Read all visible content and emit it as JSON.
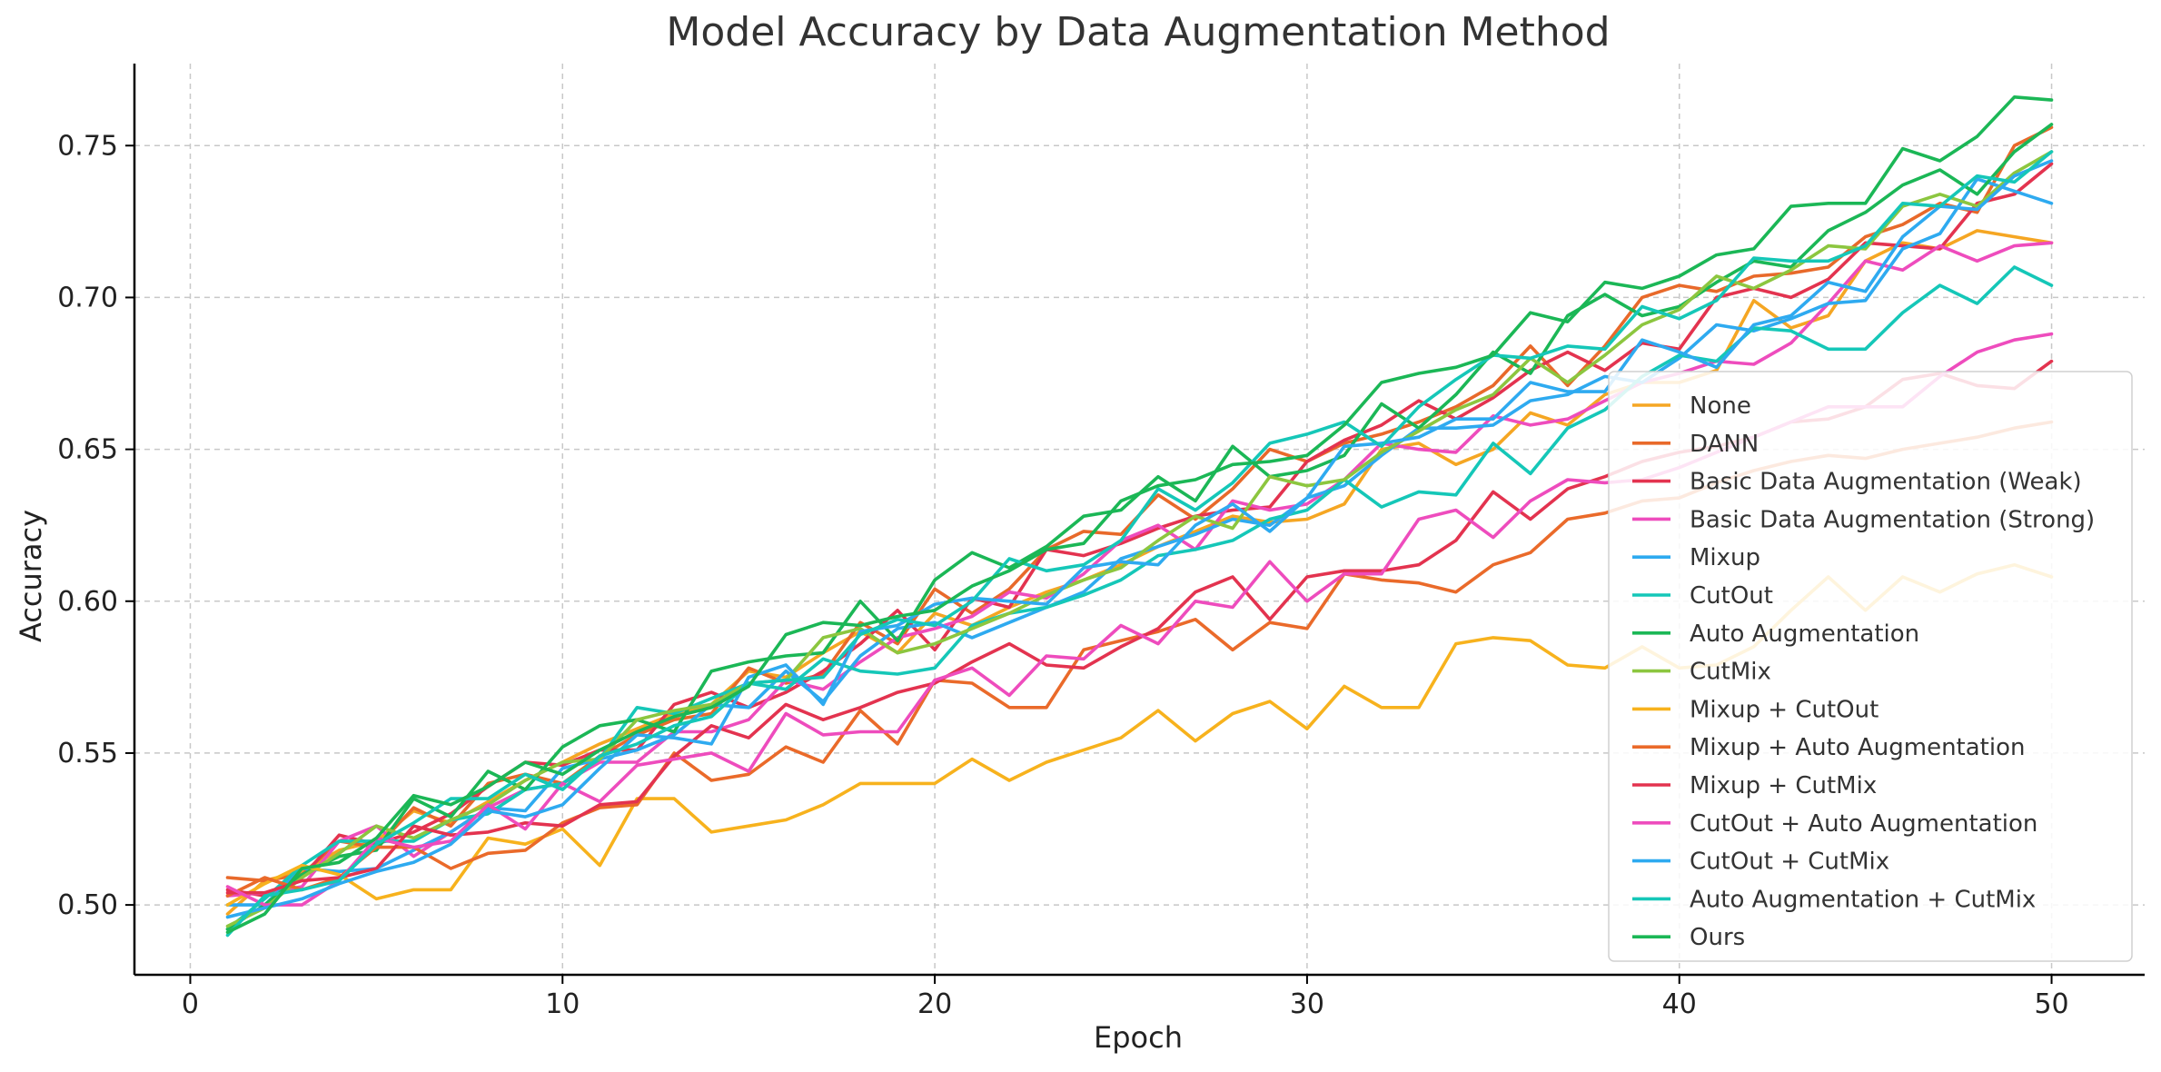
{
  "chart_data": {
    "type": "line",
    "title": "Model Accuracy by Data Augmentation Method",
    "xlabel": "Epoch",
    "ylabel": "Accuracy",
    "xlim": [
      -1.5,
      52.5
    ],
    "ylim": [
      0.477,
      0.777
    ],
    "xticks": [
      0,
      10,
      20,
      30,
      40,
      50
    ],
    "yticks": [
      0.5,
      0.55,
      0.6,
      0.65,
      0.7,
      0.75
    ],
    "xtick_labels": [
      "0",
      "10",
      "20",
      "30",
      "40",
      "50"
    ],
    "ytick_labels": [
      "0.50",
      "0.55",
      "0.60",
      "0.65",
      "0.70",
      "0.75"
    ],
    "grid": true,
    "legend_position": "lower-right",
    "x": [
      1,
      2,
      3,
      4,
      5,
      6,
      7,
      8,
      9,
      10,
      11,
      12,
      13,
      14,
      15,
      16,
      17,
      18,
      19,
      20,
      21,
      22,
      23,
      24,
      25,
      26,
      27,
      28,
      29,
      30,
      31,
      32,
      33,
      34,
      35,
      36,
      37,
      38,
      39,
      40,
      41,
      42,
      43,
      44,
      45,
      46,
      47,
      48,
      49,
      50
    ],
    "series": [
      {
        "name": "None",
        "color": "#f5a623",
        "values": [
          0.497,
          0.508,
          0.511,
          0.518,
          0.521,
          0.531,
          0.527,
          0.534,
          0.541,
          0.547,
          0.553,
          0.558,
          0.563,
          0.566,
          0.577,
          0.575,
          0.583,
          0.59,
          0.583,
          0.596,
          0.592,
          0.598,
          0.603,
          0.607,
          0.612,
          0.618,
          0.623,
          0.628,
          0.626,
          0.627,
          0.632,
          0.65,
          0.652,
          0.645,
          0.65,
          0.662,
          0.658,
          0.668,
          0.672,
          0.672,
          0.676,
          0.699,
          0.69,
          0.694,
          0.712,
          0.718,
          0.716,
          0.722,
          0.72,
          0.718
        ]
      },
      {
        "name": "DANN",
        "color": "#e8692a",
        "values": [
          0.509,
          0.508,
          0.51,
          0.521,
          0.519,
          0.532,
          0.526,
          0.54,
          0.543,
          0.54,
          0.549,
          0.556,
          0.561,
          0.563,
          0.578,
          0.573,
          0.576,
          0.593,
          0.586,
          0.604,
          0.596,
          0.604,
          0.617,
          0.623,
          0.622,
          0.635,
          0.627,
          0.637,
          0.65,
          0.646,
          0.652,
          0.655,
          0.659,
          0.664,
          0.671,
          0.684,
          0.671,
          0.684,
          0.7,
          0.704,
          0.702,
          0.707,
          0.708,
          0.71,
          0.72,
          0.724,
          0.731,
          0.728,
          0.75,
          0.756
        ]
      },
      {
        "name": "Basic Data Augmentation (Weak)",
        "color": "#e3334f",
        "values": [
          0.505,
          0.503,
          0.509,
          0.523,
          0.52,
          0.524,
          0.53,
          0.539,
          0.547,
          0.546,
          0.551,
          0.551,
          0.566,
          0.57,
          0.565,
          0.57,
          0.577,
          0.586,
          0.597,
          0.584,
          0.601,
          0.598,
          0.617,
          0.615,
          0.619,
          0.624,
          0.628,
          0.63,
          0.631,
          0.646,
          0.653,
          0.658,
          0.666,
          0.66,
          0.667,
          0.676,
          0.682,
          0.676,
          0.685,
          0.683,
          0.7,
          0.703,
          0.7,
          0.706,
          0.718,
          0.717,
          0.716,
          0.731,
          0.734,
          0.744
        ]
      },
      {
        "name": "Basic Data Augmentation (Strong)",
        "color": "#ee4cbd",
        "values": [
          0.503,
          0.504,
          0.506,
          0.521,
          0.526,
          0.516,
          0.524,
          0.532,
          0.538,
          0.54,
          0.547,
          0.547,
          0.557,
          0.557,
          0.561,
          0.574,
          0.571,
          0.58,
          0.588,
          0.591,
          0.595,
          0.603,
          0.601,
          0.609,
          0.62,
          0.625,
          0.617,
          0.633,
          0.63,
          0.632,
          0.64,
          0.652,
          0.65,
          0.649,
          0.661,
          0.658,
          0.66,
          0.666,
          0.672,
          0.675,
          0.679,
          0.678,
          0.685,
          0.698,
          0.712,
          0.709,
          0.717,
          0.712,
          0.717,
          0.718
        ]
      },
      {
        "name": "Mixup",
        "color": "#2eaaf0",
        "values": [
          0.5,
          0.5,
          0.512,
          0.511,
          0.512,
          0.518,
          0.524,
          0.532,
          0.531,
          0.545,
          0.548,
          0.551,
          0.556,
          0.566,
          0.565,
          0.577,
          0.567,
          0.582,
          0.591,
          0.593,
          0.588,
          0.593,
          0.598,
          0.603,
          0.614,
          0.618,
          0.622,
          0.627,
          0.625,
          0.634,
          0.638,
          0.648,
          0.657,
          0.657,
          0.658,
          0.666,
          0.668,
          0.674,
          0.672,
          0.68,
          0.691,
          0.689,
          0.693,
          0.698,
          0.699,
          0.716,
          0.721,
          0.739,
          0.735,
          0.731
        ]
      },
      {
        "name": "CutOut",
        "color": "#15c7b8",
        "values": [
          0.492,
          0.502,
          0.513,
          0.521,
          0.521,
          0.521,
          0.528,
          0.53,
          0.538,
          0.54,
          0.548,
          0.565,
          0.563,
          0.568,
          0.573,
          0.571,
          0.581,
          0.577,
          0.576,
          0.578,
          0.592,
          0.596,
          0.598,
          0.602,
          0.607,
          0.615,
          0.617,
          0.62,
          0.627,
          0.63,
          0.64,
          0.631,
          0.636,
          0.635,
          0.652,
          0.642,
          0.657,
          0.663,
          0.674,
          0.681,
          0.679,
          0.69,
          0.689,
          0.683,
          0.683,
          0.695,
          0.704,
          0.698,
          0.71,
          0.704
        ]
      },
      {
        "name": "Auto Augmentation",
        "color": "#1bb756",
        "values": [
          0.492,
          0.5,
          0.51,
          0.516,
          0.518,
          0.535,
          0.529,
          0.544,
          0.538,
          0.552,
          0.559,
          0.561,
          0.557,
          0.577,
          0.58,
          0.582,
          0.583,
          0.6,
          0.587,
          0.607,
          0.616,
          0.611,
          0.618,
          0.628,
          0.63,
          0.641,
          0.633,
          0.651,
          0.641,
          0.643,
          0.648,
          0.665,
          0.657,
          0.668,
          0.682,
          0.675,
          0.694,
          0.701,
          0.694,
          0.697,
          0.705,
          0.712,
          0.71,
          0.722,
          0.728,
          0.737,
          0.742,
          0.734,
          0.748,
          0.757
        ]
      },
      {
        "name": "CutMix",
        "color": "#8cc63f",
        "values": [
          0.493,
          0.499,
          0.509,
          0.517,
          0.526,
          0.522,
          0.528,
          0.533,
          0.541,
          0.547,
          0.548,
          0.561,
          0.564,
          0.566,
          0.573,
          0.574,
          0.588,
          0.591,
          0.583,
          0.586,
          0.591,
          0.596,
          0.602,
          0.607,
          0.611,
          0.62,
          0.628,
          0.624,
          0.641,
          0.638,
          0.64,
          0.649,
          0.656,
          0.663,
          0.668,
          0.68,
          0.672,
          0.681,
          0.691,
          0.696,
          0.707,
          0.703,
          0.709,
          0.717,
          0.716,
          0.73,
          0.734,
          0.73,
          0.741,
          0.748
        ]
      },
      {
        "name": "Mixup + CutOut",
        "color": "#f7b21d",
        "values": [
          0.5,
          0.507,
          0.513,
          0.51,
          0.502,
          0.505,
          0.505,
          0.522,
          0.52,
          0.525,
          0.513,
          0.535,
          0.535,
          0.524,
          0.526,
          0.528,
          0.533,
          0.54,
          0.54,
          0.54,
          0.548,
          0.541,
          0.547,
          0.551,
          0.555,
          0.564,
          0.554,
          0.563,
          0.567,
          0.558,
          0.572,
          0.565,
          0.565,
          0.586,
          0.588,
          0.587,
          0.579,
          0.578,
          0.585,
          0.578,
          0.579,
          0.585,
          0.597,
          0.608,
          0.597,
          0.608,
          0.603,
          0.609,
          0.612,
          0.608
        ]
      },
      {
        "name": "Mixup + Auto Augmentation",
        "color": "#ea6a2a",
        "values": [
          0.503,
          0.509,
          0.505,
          0.509,
          0.519,
          0.519,
          0.512,
          0.517,
          0.518,
          0.527,
          0.532,
          0.533,
          0.55,
          0.541,
          0.543,
          0.552,
          0.547,
          0.564,
          0.553,
          0.574,
          0.573,
          0.565,
          0.565,
          0.584,
          0.587,
          0.59,
          0.594,
          0.584,
          0.593,
          0.591,
          0.609,
          0.607,
          0.606,
          0.603,
          0.612,
          0.616,
          0.627,
          0.629,
          0.633,
          0.634,
          0.639,
          0.643,
          0.646,
          0.648,
          0.647,
          0.65,
          0.652,
          0.654,
          0.657,
          0.659
        ]
      },
      {
        "name": "Mixup + CutMix",
        "color": "#e3334f",
        "values": [
          0.504,
          0.504,
          0.508,
          0.509,
          0.512,
          0.526,
          0.523,
          0.524,
          0.527,
          0.526,
          0.533,
          0.534,
          0.549,
          0.559,
          0.555,
          0.566,
          0.561,
          0.565,
          0.57,
          0.573,
          0.58,
          0.586,
          0.579,
          0.578,
          0.585,
          0.591,
          0.603,
          0.608,
          0.594,
          0.608,
          0.61,
          0.61,
          0.612,
          0.62,
          0.636,
          0.627,
          0.637,
          0.641,
          0.646,
          0.649,
          0.651,
          0.654,
          0.659,
          0.66,
          0.664,
          0.673,
          0.675,
          0.671,
          0.67,
          0.679
        ]
      },
      {
        "name": "CutOut + Auto Augmentation",
        "color": "#ee4cbd",
        "values": [
          0.506,
          0.5,
          0.5,
          0.508,
          0.522,
          0.519,
          0.521,
          0.533,
          0.525,
          0.54,
          0.534,
          0.546,
          0.548,
          0.55,
          0.544,
          0.563,
          0.556,
          0.557,
          0.557,
          0.574,
          0.578,
          0.569,
          0.582,
          0.581,
          0.592,
          0.586,
          0.6,
          0.598,
          0.613,
          0.6,
          0.609,
          0.609,
          0.627,
          0.63,
          0.621,
          0.633,
          0.64,
          0.639,
          0.64,
          0.644,
          0.649,
          0.654,
          0.659,
          0.664,
          0.664,
          0.664,
          0.674,
          0.682,
          0.686,
          0.688
        ]
      },
      {
        "name": "CutOut + CutMix",
        "color": "#2eaaf0",
        "values": [
          0.496,
          0.499,
          0.502,
          0.507,
          0.511,
          0.514,
          0.52,
          0.531,
          0.529,
          0.533,
          0.545,
          0.556,
          0.555,
          0.553,
          0.575,
          0.579,
          0.566,
          0.59,
          0.592,
          0.599,
          0.601,
          0.6,
          0.599,
          0.611,
          0.613,
          0.612,
          0.625,
          0.632,
          0.623,
          0.634,
          0.651,
          0.652,
          0.654,
          0.66,
          0.66,
          0.672,
          0.669,
          0.669,
          0.686,
          0.682,
          0.677,
          0.691,
          0.694,
          0.705,
          0.702,
          0.72,
          0.73,
          0.729,
          0.74,
          0.745
        ]
      },
      {
        "name": "Auto Augmentation + CutMix",
        "color": "#15c7b8",
        "values": [
          0.49,
          0.503,
          0.505,
          0.508,
          0.52,
          0.527,
          0.535,
          0.535,
          0.543,
          0.538,
          0.549,
          0.553,
          0.559,
          0.562,
          0.573,
          0.574,
          0.575,
          0.589,
          0.594,
          0.592,
          0.6,
          0.614,
          0.61,
          0.612,
          0.62,
          0.637,
          0.63,
          0.639,
          0.652,
          0.655,
          0.659,
          0.651,
          0.664,
          0.673,
          0.681,
          0.68,
          0.684,
          0.683,
          0.697,
          0.693,
          0.699,
          0.713,
          0.712,
          0.712,
          0.717,
          0.731,
          0.73,
          0.74,
          0.738,
          0.748
        ]
      },
      {
        "name": "Ours",
        "color": "#1bb756",
        "values": [
          0.491,
          0.497,
          0.512,
          0.514,
          0.522,
          0.536,
          0.533,
          0.539,
          0.547,
          0.543,
          0.551,
          0.557,
          0.562,
          0.565,
          0.572,
          0.589,
          0.593,
          0.592,
          0.595,
          0.597,
          0.605,
          0.61,
          0.617,
          0.619,
          0.633,
          0.638,
          0.64,
          0.645,
          0.646,
          0.648,
          0.658,
          0.672,
          0.675,
          0.677,
          0.681,
          0.695,
          0.692,
          0.705,
          0.703,
          0.707,
          0.714,
          0.716,
          0.73,
          0.731,
          0.731,
          0.749,
          0.745,
          0.753,
          0.766,
          0.765
        ]
      }
    ]
  }
}
